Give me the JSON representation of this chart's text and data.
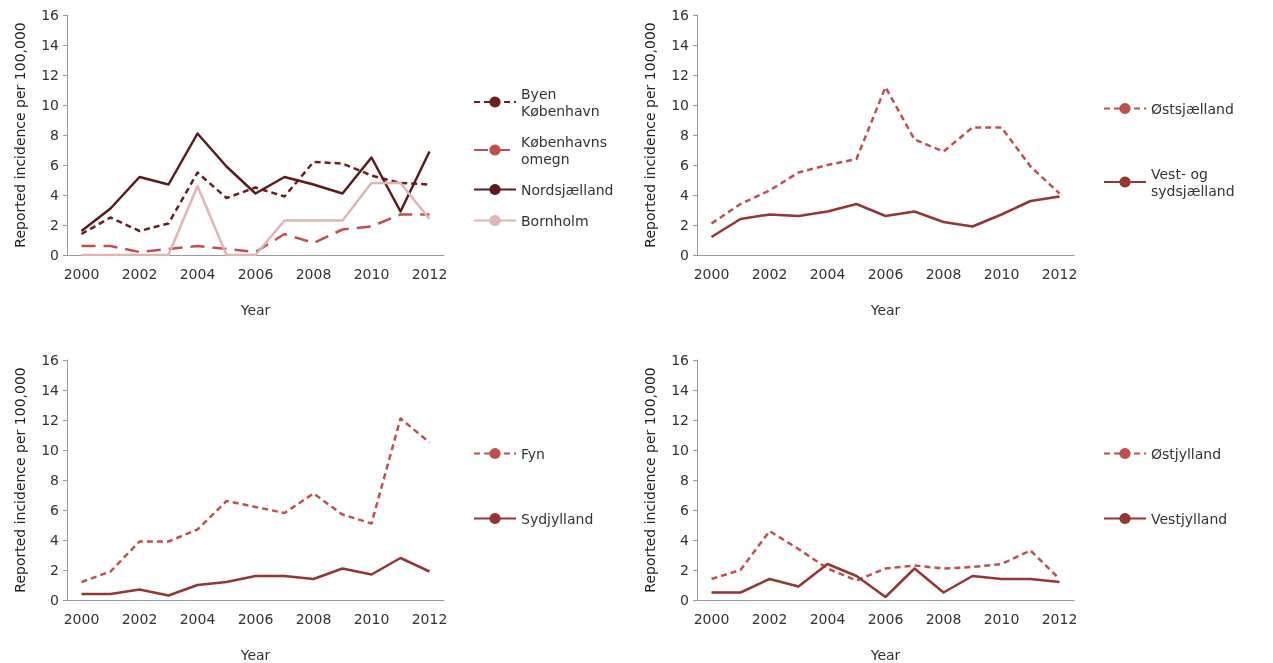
{
  "chart_data": [
    {
      "type": "line",
      "xlabel": "Year",
      "ylabel": "Reported incidence per 100,000",
      "categories": [
        "2000",
        null,
        "2002",
        null,
        "2004",
        null,
        "2006",
        null,
        "2008",
        null,
        "2010",
        null,
        "2012"
      ],
      "ylim": [
        0,
        16
      ],
      "yticks": [
        0,
        2,
        4,
        6,
        8,
        10,
        12,
        14,
        16
      ],
      "grid": false,
      "legend": "right",
      "marker": "none",
      "series": [
        {
          "name": "Byen København",
          "color": "#6b1f1f",
          "line_style": "dotted",
          "values": [
            1.4,
            2.5,
            1.6,
            2.1,
            5.5,
            3.8,
            4.5,
            3.9,
            6.2,
            6.1,
            5.3,
            4.8,
            4.7
          ]
        },
        {
          "name": "Københavns omegn",
          "color": "#c0504d",
          "line_style": "dashed",
          "values": [
            0.6,
            0.6,
            0.2,
            0.4,
            0.6,
            0.4,
            0.2,
            1.4,
            0.8,
            1.7,
            1.9,
            2.7,
            2.7
          ]
        },
        {
          "name": "Nordsjælland",
          "color": "#5c1a1a",
          "line_style": "solid",
          "values": [
            1.6,
            3.1,
            5.2,
            4.7,
            8.1,
            5.9,
            4.1,
            5.2,
            4.7,
            4.1,
            6.5,
            2.9,
            6.9
          ]
        },
        {
          "name": "Bornholm",
          "color": "#e0b4b4",
          "line_style": "solid",
          "values": [
            0,
            0,
            0,
            0,
            4.6,
            0,
            0,
            2.3,
            2.3,
            2.3,
            4.8,
            4.8,
            2.4
          ]
        }
      ]
    },
    {
      "type": "line",
      "xlabel": "Year",
      "ylabel": "Reported incidence per 100,000",
      "categories": [
        "2000",
        null,
        "2002",
        null,
        "2004",
        null,
        "2006",
        null,
        "2008",
        null,
        "2010",
        null,
        "2012"
      ],
      "ylim": [
        0,
        16
      ],
      "yticks": [
        0,
        2,
        4,
        6,
        8,
        10,
        12,
        14,
        16
      ],
      "grid": false,
      "legend": "right",
      "marker": "none",
      "series": [
        {
          "name": "Østsjælland",
          "color": "#c0504d",
          "line_style": "dotted",
          "values": [
            2.1,
            3.4,
            4.3,
            5.5,
            6.0,
            6.4,
            11.2,
            7.7,
            6.9,
            8.5,
            8.5,
            5.9,
            4.1
          ]
        },
        {
          "name": "Vest- og sydsjælland",
          "color": "#943634",
          "line_style": "solid",
          "values": [
            1.2,
            2.4,
            2.7,
            2.6,
            2.9,
            3.4,
            2.6,
            2.9,
            2.2,
            1.9,
            2.7,
            3.6,
            3.9
          ]
        }
      ]
    },
    {
      "type": "line",
      "xlabel": "Year",
      "ylabel": "Reported incidence per 100,000",
      "categories": [
        "2000",
        null,
        "2002",
        null,
        "2004",
        null,
        "2006",
        null,
        "2008",
        null,
        "2010",
        null,
        "2012"
      ],
      "ylim": [
        0,
        16
      ],
      "yticks": [
        0,
        2,
        4,
        6,
        8,
        10,
        12,
        14,
        16
      ],
      "grid": false,
      "legend": "right",
      "marker": "none",
      "series": [
        {
          "name": "Fyn",
          "color": "#c0504d",
          "line_style": "dotted",
          "values": [
            1.2,
            1.9,
            3.9,
            3.9,
            4.7,
            6.6,
            6.2,
            5.8,
            7.1,
            5.7,
            5.1,
            12.1,
            10.5
          ]
        },
        {
          "name": "Sydjylland",
          "color": "#943634",
          "line_style": "solid",
          "values": [
            0.4,
            0.4,
            0.7,
            0.3,
            1.0,
            1.2,
            1.6,
            1.6,
            1.4,
            2.1,
            1.7,
            2.8,
            1.9
          ]
        }
      ]
    },
    {
      "type": "line",
      "xlabel": "Year",
      "ylabel": "Reported incidence per 100,000",
      "categories": [
        "2000",
        null,
        "2002",
        null,
        "2004",
        null,
        "2006",
        null,
        "2008",
        null,
        "2010",
        null,
        "2012"
      ],
      "ylim": [
        0,
        16
      ],
      "yticks": [
        0,
        2,
        4,
        6,
        8,
        10,
        12,
        14,
        16
      ],
      "grid": false,
      "legend": "right",
      "marker": "none",
      "series": [
        {
          "name": "Østjylland",
          "color": "#c0504d",
          "line_style": "dotted",
          "values": [
            1.4,
            2.0,
            4.6,
            3.4,
            2.1,
            1.3,
            2.1,
            2.3,
            2.1,
            2.2,
            2.4,
            3.3,
            1.4
          ]
        },
        {
          "name": "Vestjylland",
          "color": "#943634",
          "line_style": "solid",
          "values": [
            0.5,
            0.5,
            1.4,
            0.9,
            2.4,
            1.6,
            0.2,
            2.1,
            0.5,
            1.6,
            1.4,
            1.4,
            1.2
          ]
        }
      ]
    }
  ]
}
